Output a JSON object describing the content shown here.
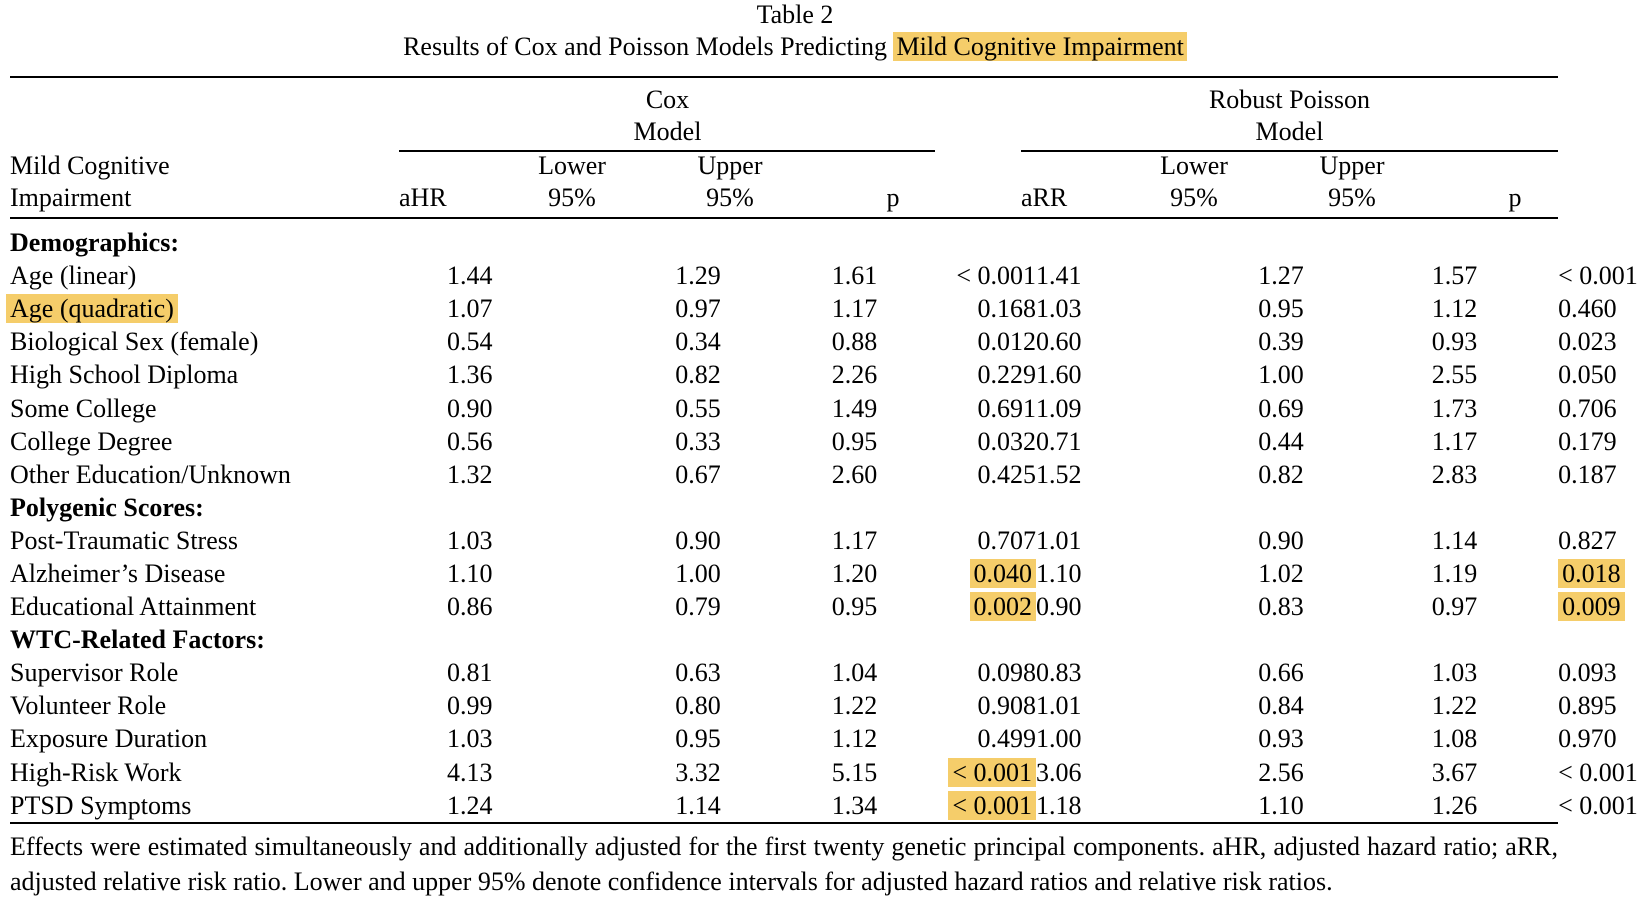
{
  "caption": {
    "table_label": "Table 2",
    "title_prefix": "Results of Cox and Poisson Models Predicting",
    "title_highlight": "Mild Cognitive Impairment"
  },
  "header": {
    "row_label_line1": "Mild Cognitive",
    "row_label_line2": "Impairment",
    "cox_line1": "Cox",
    "cox_line2": "Model",
    "poisson_line1": "Robust Poisson",
    "poisson_line2": "Model",
    "cox_est": "aHR",
    "poisson_est": "aRR",
    "lower_line1": "Lower",
    "upper_line1": "Upper",
    "ci_line2": "95%",
    "p": "p"
  },
  "highlight_color": "#f5cd6a",
  "rows": [
    {
      "section": "Demographics:"
    },
    {
      "label": "Age (linear)",
      "cox": [
        "1.44",
        "1.29",
        "1.61",
        "< 0.001"
      ],
      "poisson": [
        "1.41",
        "1.27",
        "1.57",
        "< 0.001"
      ]
    },
    {
      "label": "Age (quadratic)",
      "label_highlight": true,
      "cox": [
        "1.07",
        "0.97",
        "1.17",
        "0.168"
      ],
      "poisson": [
        "1.03",
        "0.95",
        "1.12",
        "0.460"
      ]
    },
    {
      "label": "Biological Sex (female)",
      "cox": [
        "0.54",
        "0.34",
        "0.88",
        "0.012"
      ],
      "poisson": [
        "0.60",
        "0.39",
        "0.93",
        "0.023"
      ]
    },
    {
      "label": "High School Diploma",
      "cox": [
        "1.36",
        "0.82",
        "2.26",
        "0.229"
      ],
      "poisson": [
        "1.60",
        "1.00",
        "2.55",
        "0.050"
      ]
    },
    {
      "label": "Some College",
      "cox": [
        "0.90",
        "0.55",
        "1.49",
        "0.691"
      ],
      "poisson": [
        "1.09",
        "0.69",
        "1.73",
        "0.706"
      ]
    },
    {
      "label": "College Degree",
      "cox": [
        "0.56",
        "0.33",
        "0.95",
        "0.032"
      ],
      "poisson": [
        "0.71",
        "0.44",
        "1.17",
        "0.179"
      ]
    },
    {
      "label": "Other Education/Unknown",
      "cox": [
        "1.32",
        "0.67",
        "2.60",
        "0.425"
      ],
      "poisson": [
        "1.52",
        "0.82",
        "2.83",
        "0.187"
      ]
    },
    {
      "section": "Polygenic Scores:"
    },
    {
      "label": "Post-Traumatic Stress",
      "cox": [
        "1.03",
        "0.90",
        "1.17",
        "0.707"
      ],
      "poisson": [
        "1.01",
        "0.90",
        "1.14",
        "0.827"
      ]
    },
    {
      "label": "Alzheimer’s Disease",
      "cox": [
        "1.10",
        "1.00",
        "1.20",
        "0.040"
      ],
      "poisson": [
        "1.10",
        "1.02",
        "1.19",
        "0.018"
      ],
      "cox_p_highlight": true,
      "poisson_p_highlight": true
    },
    {
      "label": "Educational Attainment",
      "cox": [
        "0.86",
        "0.79",
        "0.95",
        "0.002"
      ],
      "poisson": [
        "0.90",
        "0.83",
        "0.97",
        "0.009"
      ],
      "cox_p_highlight": true,
      "poisson_p_highlight": true
    },
    {
      "section": "WTC-Related Factors:"
    },
    {
      "label": "Supervisor Role",
      "cox": [
        "0.81",
        "0.63",
        "1.04",
        "0.098"
      ],
      "poisson": [
        "0.83",
        "0.66",
        "1.03",
        "0.093"
      ]
    },
    {
      "label": "Volunteer Role",
      "cox": [
        "0.99",
        "0.80",
        "1.22",
        "0.908"
      ],
      "poisson": [
        "1.01",
        "0.84",
        "1.22",
        "0.895"
      ]
    },
    {
      "label": "Exposure Duration",
      "cox": [
        "1.03",
        "0.95",
        "1.12",
        "0.499"
      ],
      "poisson": [
        "1.00",
        "0.93",
        "1.08",
        "0.970"
      ]
    },
    {
      "label": "High-Risk Work",
      "cox": [
        "4.13",
        "3.32",
        "5.15",
        "< 0.001"
      ],
      "poisson": [
        "3.06",
        "2.56",
        "3.67",
        "< 0.001"
      ],
      "cox_p_highlight": true
    },
    {
      "label": "PTSD Symptoms",
      "cox": [
        "1.24",
        "1.14",
        "1.34",
        "< 0.001"
      ],
      "poisson": [
        "1.18",
        "1.10",
        "1.26",
        "< 0.001"
      ],
      "cox_p_highlight": true
    }
  ],
  "note": "Effects were estimated simultaneously and additionally adjusted for the first twenty genetic principal components. aHR, adjusted hazard ratio; aRR, adjusted relative risk ratio. Lower and upper 95% denote confidence intervals for adjusted hazard ratios and relative risk ratios."
}
